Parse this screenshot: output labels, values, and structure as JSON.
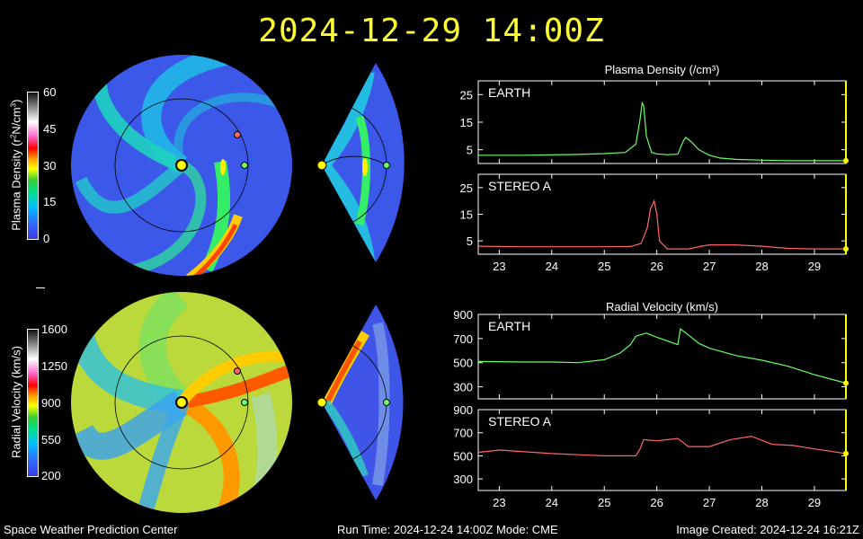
{
  "header": {
    "title": "2024-12-29 14:00Z"
  },
  "colorbars": [
    {
      "label_pre": "Plasma Density (r",
      "label_sup1": "2",
      "label_mid": "N/cm",
      "label_sup2": "3",
      "label_post": ")",
      "ticks": [
        "60",
        "45",
        "30",
        "15",
        "0"
      ]
    },
    {
      "label": "Radial Velocity (km/s)",
      "ticks": [
        "1600",
        "1250",
        "900",
        "550",
        "200"
      ]
    }
  ],
  "footer": {
    "left": "Space Weather Prediction Center",
    "center": "Run Time: 2024-12-24 14:00Z  Mode: CME",
    "right": "Image Created: 2024-12-24 16:21Z"
  },
  "chart_data": [
    {
      "type": "line",
      "title": "Plasma Density (/cm³)",
      "panel": "EARTH",
      "color": "#66ff66",
      "x": [
        22.6,
        23.5,
        24.5,
        25.0,
        25.4,
        25.6,
        25.68,
        25.72,
        25.75,
        25.8,
        25.9,
        26.0,
        26.2,
        26.4,
        26.5,
        26.55,
        26.65,
        26.8,
        27.0,
        27.2,
        27.5,
        28.0,
        28.5,
        29.0,
        29.6
      ],
      "y": [
        3,
        3,
        3.3,
        3.6,
        4,
        7,
        16,
        22,
        21,
        10,
        4,
        3.5,
        3.2,
        3.4,
        8,
        9.5,
        8,
        5,
        3,
        2,
        1.5,
        1.2,
        1.0,
        1.0,
        1.0
      ],
      "xlim": [
        22.6,
        29.6
      ],
      "ylim": [
        0,
        30
      ],
      "yticks": [
        5,
        15,
        25
      ]
    },
    {
      "type": "line",
      "panel": "STEREO A",
      "color": "#ff6666",
      "x": [
        22.6,
        23.5,
        24.5,
        25.0,
        25.5,
        25.7,
        25.78,
        25.82,
        25.88,
        25.95,
        26.0,
        26.05,
        26.2,
        26.6,
        26.85,
        27.0,
        27.5,
        28.0,
        28.5,
        29.0,
        29.6
      ],
      "y": [
        3,
        2.8,
        2.8,
        2.8,
        2.9,
        4,
        8,
        10,
        17,
        20,
        15,
        5,
        2,
        2,
        3,
        3.5,
        3.5,
        3,
        2.2,
        2,
        2
      ],
      "xlim": [
        22.6,
        29.6
      ],
      "ylim": [
        0,
        30
      ],
      "yticks": [
        5,
        15,
        25
      ]
    },
    {
      "type": "line",
      "title": "Radial Velocity (km/s)",
      "panel": "EARTH",
      "color": "#66ff66",
      "x": [
        22.6,
        23.5,
        24.0,
        24.5,
        25.0,
        25.3,
        25.5,
        25.6,
        25.8,
        26.0,
        26.2,
        26.4,
        26.45,
        26.6,
        26.8,
        27.0,
        27.5,
        28.0,
        28.5,
        29.0,
        29.6
      ],
      "y": [
        510,
        505,
        505,
        500,
        525,
        580,
        650,
        720,
        745,
        710,
        680,
        650,
        780,
        730,
        660,
        620,
        560,
        520,
        470,
        400,
        330
      ],
      "xlim": [
        22.6,
        29.6
      ],
      "ylim": [
        200,
        900
      ],
      "yticks": [
        300,
        500,
        700,
        900
      ]
    },
    {
      "type": "line",
      "panel": "STEREO A",
      "color": "#ff6666",
      "x": [
        22.6,
        23.0,
        24.0,
        25.0,
        25.6,
        25.68,
        25.75,
        26.0,
        26.2,
        26.4,
        26.6,
        27.0,
        27.4,
        27.8,
        28.2,
        28.6,
        29.0,
        29.6
      ],
      "y": [
        530,
        550,
        520,
        500,
        500,
        560,
        640,
        630,
        640,
        650,
        580,
        580,
        640,
        670,
        600,
        590,
        560,
        520
      ],
      "xlim": [
        22.6,
        29.6
      ],
      "ylim": [
        200,
        900
      ],
      "yticks": [
        300,
        500,
        700,
        900
      ],
      "xticks": [
        "23",
        "24",
        "25",
        "26",
        "27",
        "28",
        "29"
      ]
    }
  ]
}
